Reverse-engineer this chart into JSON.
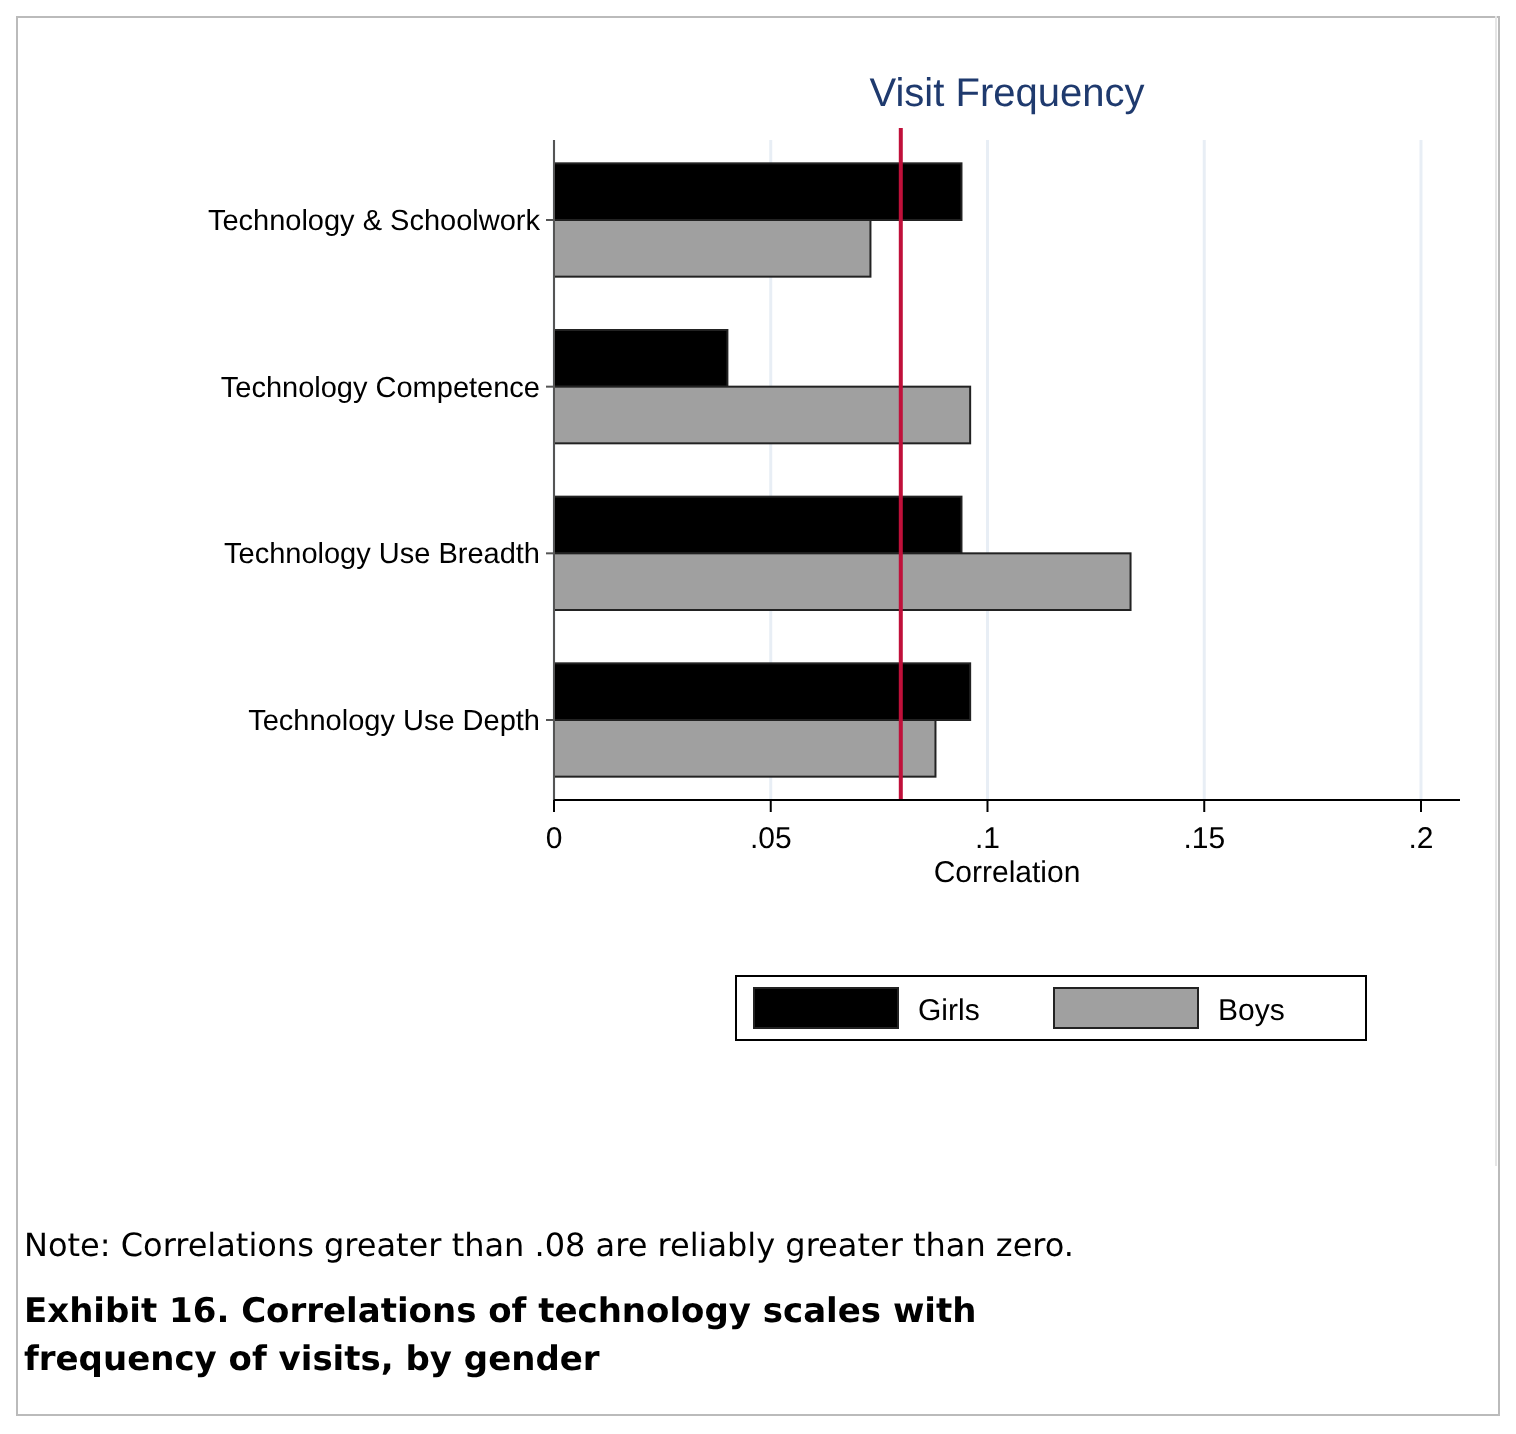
{
  "chart_data": {
    "type": "bar",
    "orientation": "horizontal",
    "title": "Visit Frequency",
    "xlabel": "Correlation",
    "categories": [
      "Technology & Schoolwork",
      "Technology Competence",
      "Technology Use Breadth",
      "Technology Use Depth"
    ],
    "series": [
      {
        "name": "Girls",
        "color": "#000000",
        "values": [
          0.094,
          0.04,
          0.094,
          0.096
        ]
      },
      {
        "name": "Boys",
        "color": "#a0a0a0",
        "values": [
          0.073,
          0.096,
          0.133,
          0.088
        ]
      }
    ],
    "xlim": [
      0,
      0.209
    ],
    "xticks": [
      0,
      {
        "value": 0.05,
        "label": ".05"
      },
      {
        "value": 0.1,
        "label": ".1"
      },
      {
        "value": 0.15,
        "label": ".15"
      },
      {
        "value": 0.2,
        "label": ".2"
      }
    ],
    "grid": "x",
    "legend": "bottom",
    "ref_lines": [
      {
        "axis": "x",
        "value": 0.08,
        "color": "#c0103a"
      }
    ],
    "annotations": [
      "Note: Correlations greater than .08 are reliably greater than zero.",
      "Exhibit 16. Correlations of technology scales with frequency of visits, by gender"
    ]
  }
}
